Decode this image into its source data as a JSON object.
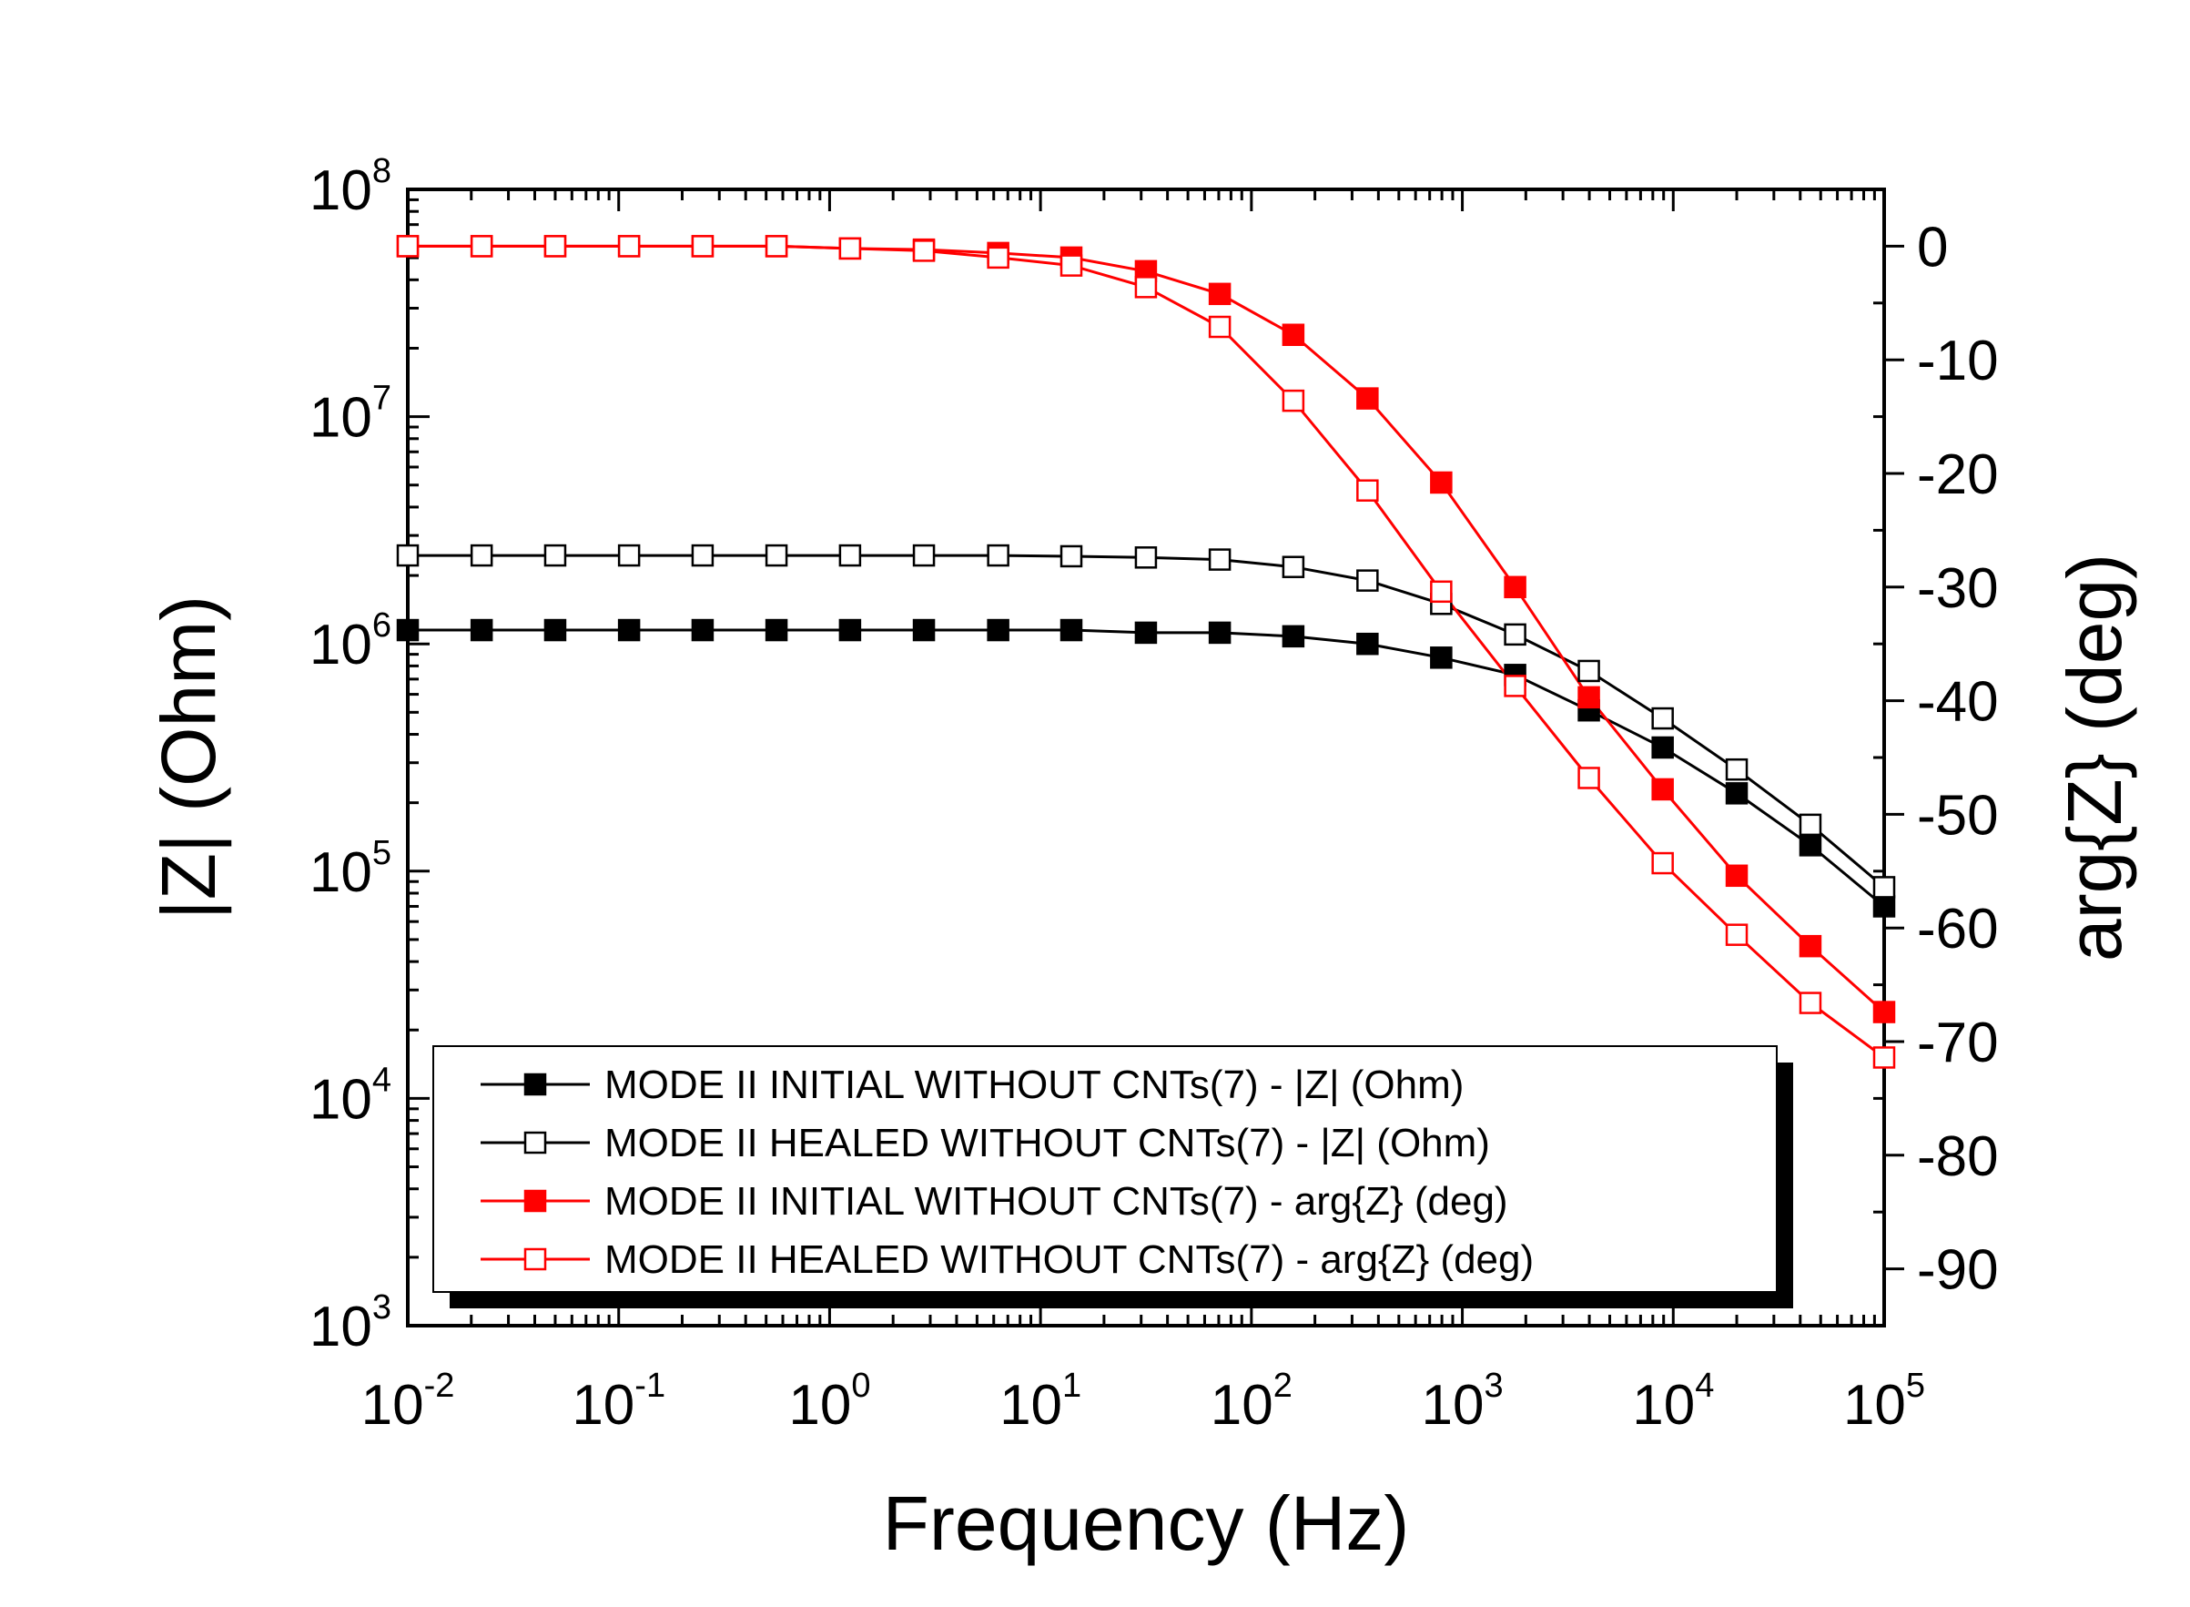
{
  "chart_data": {
    "type": "line",
    "xlabel": "Frequency (Hz)",
    "ylabel_left": "|Z| (Ohm)",
    "ylabel_right": "arg{Z} (deg)",
    "x_scale": "log",
    "y_left_scale": "log",
    "xlim": [
      0.01,
      100000
    ],
    "ylim_left": [
      1000,
      100000000
    ],
    "ylim_right": [
      -95,
      5
    ],
    "x_ticks": [
      {
        "base": "10",
        "exp": "-2",
        "value": 0.01
      },
      {
        "base": "10",
        "exp": "-1",
        "value": 0.1
      },
      {
        "base": "10",
        "exp": "0",
        "value": 1
      },
      {
        "base": "10",
        "exp": "1",
        "value": 10
      },
      {
        "base": "10",
        "exp": "2",
        "value": 100
      },
      {
        "base": "10",
        "exp": "3",
        "value": 1000
      },
      {
        "base": "10",
        "exp": "4",
        "value": 10000
      },
      {
        "base": "10",
        "exp": "5",
        "value": 100000
      }
    ],
    "y_left_ticks": [
      {
        "base": "10",
        "exp": "3",
        "value": 1000
      },
      {
        "base": "10",
        "exp": "4",
        "value": 10000
      },
      {
        "base": "10",
        "exp": "5",
        "value": 100000
      },
      {
        "base": "10",
        "exp": "6",
        "value": 1000000
      },
      {
        "base": "10",
        "exp": "7",
        "value": 10000000
      },
      {
        "base": "10",
        "exp": "8",
        "value": 100000000
      }
    ],
    "y_right_ticks": [
      0,
      -10,
      -20,
      -30,
      -40,
      -50,
      -60,
      -70,
      -80,
      -90
    ],
    "x": [
      0.01,
      0.0224,
      0.05,
      0.112,
      0.25,
      0.56,
      1.25,
      2.8,
      6.3,
      14,
      31.6,
      70.8,
      158,
      355,
      794,
      1780,
      3980,
      8910,
      20000,
      44700,
      100000
    ],
    "series": [
      {
        "name": "MODE II INITIAL WITHOUT CNTs(7) - |Z| (Ohm)",
        "axis": "left",
        "color": "#000000",
        "marker": "filled-square",
        "values": [
          1150000,
          1150000,
          1150000,
          1150000,
          1150000,
          1150000,
          1150000,
          1150000,
          1150000,
          1150000,
          1120000,
          1120000,
          1080000,
          1000000,
          870000,
          730000,
          510000,
          350000,
          220000,
          130000,
          70000
        ]
      },
      {
        "name": "MODE II HEALED WITHOUT CNTs(7) - |Z| (Ohm)",
        "axis": "left",
        "color": "#000000",
        "marker": "open-square",
        "values": [
          2450000,
          2450000,
          2450000,
          2450000,
          2450000,
          2450000,
          2450000,
          2450000,
          2450000,
          2430000,
          2400000,
          2350000,
          2180000,
          1900000,
          1500000,
          1100000,
          760000,
          470000,
          280000,
          160000,
          85000
        ]
      },
      {
        "name": "MODE II INITIAL WITHOUT CNTs(7) - arg{Z} (deg)",
        "axis": "right",
        "color": "#ff0000",
        "marker": "filled-square",
        "values": [
          0,
          0,
          0,
          0,
          0,
          0,
          -0.2,
          -0.3,
          -0.6,
          -1.0,
          -2.2,
          -4.2,
          -7.8,
          -13.4,
          -20.8,
          -30.0,
          -39.7,
          -47.8,
          -55.4,
          -61.6,
          -67.4
        ]
      },
      {
        "name": "MODE II HEALED WITHOUT CNTs(7) - arg{Z} (deg)",
        "axis": "right",
        "color": "#ff0000",
        "marker": "open-square",
        "values": [
          0,
          0,
          0,
          0,
          0,
          0,
          -0.2,
          -0.4,
          -1.0,
          -1.7,
          -3.6,
          -7.1,
          -13.6,
          -21.5,
          -30.4,
          -38.7,
          -46.8,
          -54.3,
          -60.6,
          -66.6,
          -71.4
        ]
      }
    ],
    "legend_position": "bottom-left"
  }
}
